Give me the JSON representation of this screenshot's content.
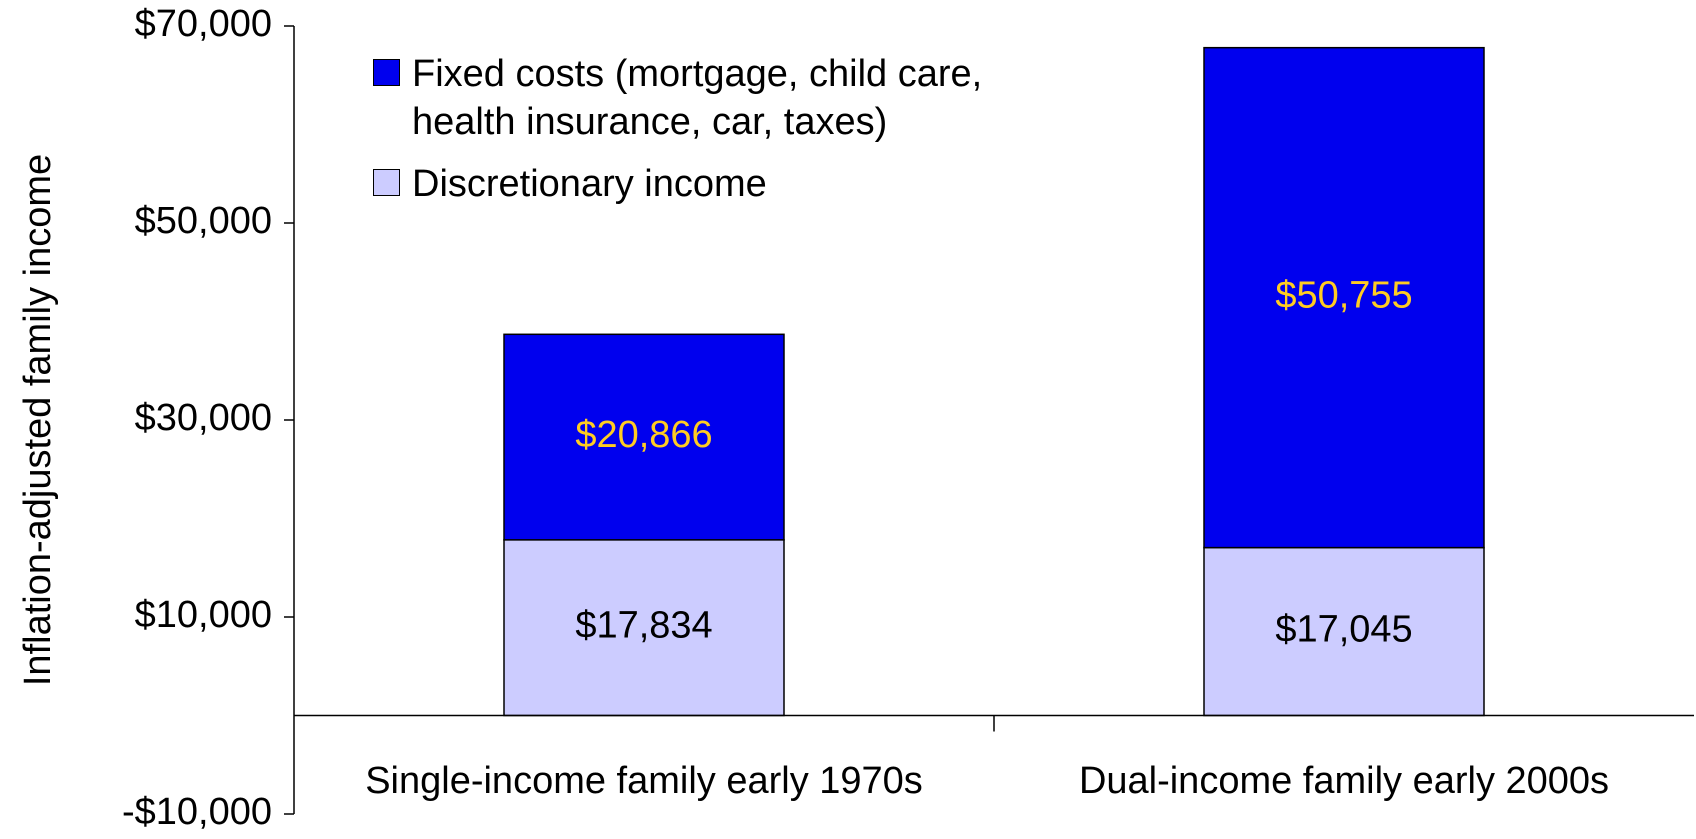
{
  "chart_data": {
    "type": "stacked-bar",
    "y_label": "Inflation-adjusted family income",
    "categories": [
      "Single-income family early 1970s",
      "Dual-income family early 2000s"
    ],
    "series": [
      {
        "name": "Discretionary income",
        "color": "#ccccff",
        "label_color": "#000000",
        "values": [
          17834,
          17045
        ],
        "value_labels": [
          "$17,834",
          "$17,045"
        ]
      },
      {
        "name": "Fixed costs (mortgage, child care, health insurance, car, taxes)",
        "color": "#0000ee",
        "label_color": "#ffcc22",
        "values": [
          20866,
          50755
        ],
        "value_labels": [
          "$20,866",
          "$50,755"
        ]
      }
    ],
    "ylim": [
      -10000,
      70000
    ],
    "yticks": [
      {
        "value": -10000,
        "label": "-$10,000"
      },
      {
        "value": 10000,
        "label": "$10,000"
      },
      {
        "value": 30000,
        "label": "$30,000"
      },
      {
        "value": 50000,
        "label": "$50,000"
      },
      {
        "value": 70000,
        "label": "$70,000"
      }
    ],
    "legend": "upper-left"
  }
}
